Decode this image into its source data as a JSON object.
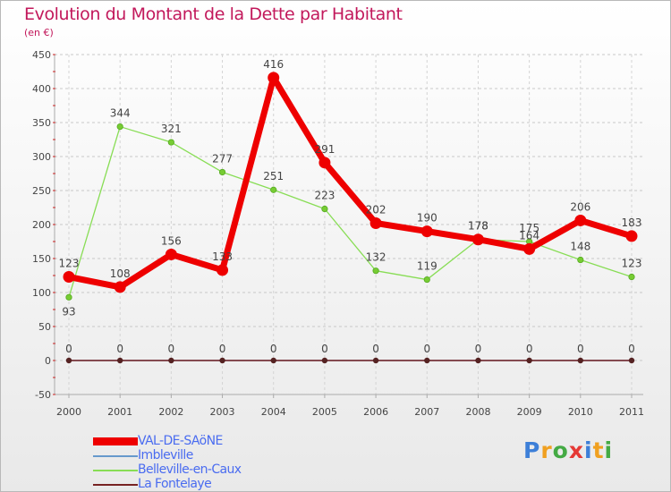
{
  "chart_data": {
    "type": "line",
    "title": "Evolution du Montant de la Dette par Habitant",
    "subtitle": "(en €)",
    "xlabel": "",
    "ylabel": "",
    "categories": [
      "2000",
      "2001",
      "2002",
      "2003",
      "2004",
      "2005",
      "2006",
      "2007",
      "2008",
      "2009",
      "2010",
      "2011"
    ],
    "ylim": [
      -50,
      450
    ],
    "yticks": [
      -50,
      0,
      50,
      100,
      150,
      200,
      250,
      300,
      350,
      400,
      450
    ],
    "ytick_labels": [
      "-50",
      "0",
      "50",
      "100",
      "150",
      "200",
      "250",
      "300",
      "350",
      "400",
      "450"
    ],
    "grid": "dashed horizontal",
    "series": [
      {
        "name": "VAL-DE-SAöNE",
        "color": "#ee0000",
        "values": [
          123,
          108,
          156,
          133,
          416,
          291,
          202,
          190,
          178,
          164,
          206,
          183
        ]
      },
      {
        "name": "Imbleville",
        "color": "#6699cc",
        "values": [
          0,
          0,
          0,
          0,
          0,
          0,
          0,
          0,
          0,
          0,
          0,
          0
        ]
      },
      {
        "name": "Belleville-en-Caux",
        "color": "#88dd55",
        "values": [
          93,
          344,
          321,
          277,
          251,
          223,
          132,
          119,
          178,
          175,
          148,
          123
        ]
      },
      {
        "name": "La Fontelaye",
        "color": "#772222",
        "values": [
          0,
          0,
          0,
          0,
          0,
          0,
          0,
          0,
          0,
          0,
          0,
          0
        ]
      }
    ],
    "labels": {
      "VAL-DE-SAöNE": [
        "123",
        "108",
        "156",
        "133",
        "416",
        "291",
        "202",
        "190",
        "178",
        "164",
        "206",
        "183"
      ],
      "Belleville-en-Caux": [
        "93",
        "344",
        "321",
        "277",
        "251",
        "223",
        "132",
        "119",
        "178",
        "175",
        "148",
        "123"
      ],
      "zero": [
        "0",
        "0",
        "0",
        "0",
        "0",
        "0",
        "0",
        "0",
        "0",
        "0",
        "0",
        "0"
      ]
    },
    "legend_position": "bottom-left"
  },
  "logo": {
    "letters": [
      "P",
      "r",
      "o",
      "x",
      "i",
      "t",
      "i"
    ],
    "colors": [
      "#3d7fd8",
      "#f0a020",
      "#44aa44",
      "#e53935",
      "#3d7fd8",
      "#f0a020",
      "#44aa44"
    ]
  }
}
